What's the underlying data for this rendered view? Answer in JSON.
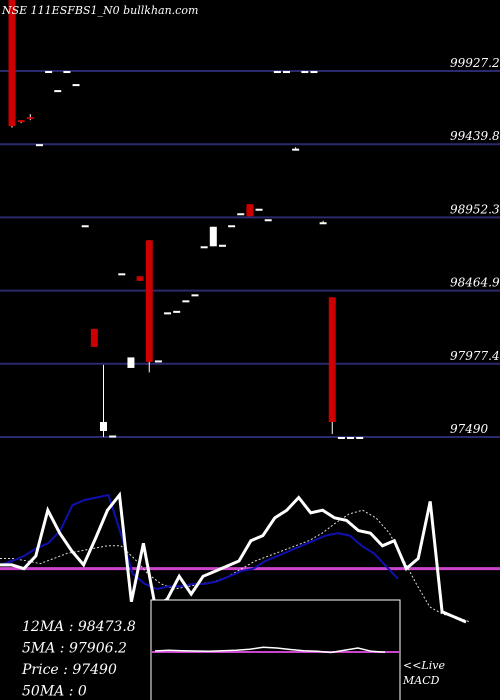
{
  "chart_data": {
    "type": "candlestick",
    "title": "NSE 111ESFBS1_N0  bullkhan.com",
    "price_ticks": [
      "99927.25",
      "99439.8",
      "98952.35",
      "98464.9",
      "97977.45",
      "97490"
    ],
    "price_values": [
      99927.25,
      99439.8,
      98952.35,
      98464.9,
      97977.45,
      97490
    ],
    "ylim": [
      97475,
      100600
    ],
    "grid": true,
    "colors": {
      "background": "#000000",
      "grid": "#2a2a6e",
      "down": "#cc0000",
      "up": "#ffffff",
      "ma_short": "#ffffff",
      "ma_long": "#1010b0",
      "signal": "#cc44cc",
      "macd_box": "#ffffff"
    },
    "candles": [
      {
        "i": 0,
        "o": 100600,
        "h": 100600,
        "l": 99550,
        "c": 99560
      },
      {
        "i": 1,
        "o": 99600,
        "h": 99600,
        "l": 99580,
        "c": 99590
      },
      {
        "i": 2,
        "o": 99620,
        "h": 99640,
        "l": 99600,
        "c": 99610
      },
      {
        "i": 3,
        "o": 99440,
        "h": 99440,
        "l": 99440,
        "c": 99440
      },
      {
        "i": 4,
        "o": 99927,
        "h": 99927,
        "l": 99927,
        "c": 99927
      },
      {
        "i": 5,
        "o": 99800,
        "h": 99800,
        "l": 99800,
        "c": 99800
      },
      {
        "i": 6,
        "o": 99927,
        "h": 99927,
        "l": 99927,
        "c": 99927
      },
      {
        "i": 7,
        "o": 99840,
        "h": 99840,
        "l": 99840,
        "c": 99840
      },
      {
        "i": 8,
        "o": 98900,
        "h": 98900,
        "l": 98900,
        "c": 98900
      },
      {
        "i": 9,
        "o": 98210,
        "h": 98210,
        "l": 98090,
        "c": 98090
      },
      {
        "i": 10,
        "o": 97530,
        "h": 97970,
        "l": 97490,
        "c": 97590
      },
      {
        "i": 11,
        "o": 97500,
        "h": 97500,
        "l": 97500,
        "c": 97500
      },
      {
        "i": 12,
        "o": 98580,
        "h": 98580,
        "l": 98580,
        "c": 98580
      },
      {
        "i": 13,
        "o": 97950,
        "h": 98020,
        "l": 97950,
        "c": 98020
      },
      {
        "i": 14,
        "o": 98560,
        "h": 98560,
        "l": 98530,
        "c": 98530
      },
      {
        "i": 15,
        "o": 98800,
        "h": 98800,
        "l": 97920,
        "c": 97990
      },
      {
        "i": 16,
        "o": 98000,
        "h": 98000,
        "l": 98000,
        "c": 98000
      },
      {
        "i": 17,
        "o": 98320,
        "h": 98320,
        "l": 98320,
        "c": 98320
      },
      {
        "i": 18,
        "o": 98330,
        "h": 98330,
        "l": 98330,
        "c": 98330
      },
      {
        "i": 19,
        "o": 98400,
        "h": 98400,
        "l": 98400,
        "c": 98400
      },
      {
        "i": 20,
        "o": 98440,
        "h": 98440,
        "l": 98440,
        "c": 98440
      },
      {
        "i": 21,
        "o": 98760,
        "h": 98760,
        "l": 98760,
        "c": 98760
      },
      {
        "i": 22,
        "o": 98760,
        "h": 98890,
        "l": 98760,
        "c": 98890
      },
      {
        "i": 23,
        "o": 98770,
        "h": 98770,
        "l": 98770,
        "c": 98770
      },
      {
        "i": 24,
        "o": 98900,
        "h": 98900,
        "l": 98900,
        "c": 98900
      },
      {
        "i": 25,
        "o": 98980,
        "h": 98980,
        "l": 98980,
        "c": 98980
      },
      {
        "i": 26,
        "o": 99040,
        "h": 99040,
        "l": 98960,
        "c": 98960
      },
      {
        "i": 27,
        "o": 99010,
        "h": 99010,
        "l": 99010,
        "c": 99010
      },
      {
        "i": 28,
        "o": 98940,
        "h": 98940,
        "l": 98940,
        "c": 98940
      },
      {
        "i": 29,
        "o": 99927,
        "h": 99927,
        "l": 99927,
        "c": 99927
      },
      {
        "i": 30,
        "o": 99927,
        "h": 99927,
        "l": 99927,
        "c": 99927
      },
      {
        "i": 31,
        "o": 99400,
        "h": 99420,
        "l": 99400,
        "c": 99410
      },
      {
        "i": 32,
        "o": 99927,
        "h": 99927,
        "l": 99927,
        "c": 99927
      },
      {
        "i": 33,
        "o": 99927,
        "h": 99927,
        "l": 99927,
        "c": 99927
      },
      {
        "i": 34,
        "o": 98910,
        "h": 98930,
        "l": 98910,
        "c": 98920
      },
      {
        "i": 35,
        "o": 98420,
        "h": 98420,
        "l": 97510,
        "c": 97590
      },
      {
        "i": 36,
        "o": 97490,
        "h": 97490,
        "l": 97490,
        "c": 97490
      },
      {
        "i": 37,
        "o": 97490,
        "h": 97490,
        "l": 97490,
        "c": 97490
      },
      {
        "i": 38,
        "o": 97490,
        "h": 97490,
        "l": 97490,
        "c": 97490
      }
    ],
    "ma_white": [
      0.55,
      0.55,
      0.58,
      0.48,
      0.12,
      0.3,
      0.44,
      0.55,
      0.34,
      0.12,
      0.0,
      0.84,
      0.38,
      0.88,
      0.82,
      0.64,
      0.78,
      0.64,
      0.6,
      0.56,
      0.52,
      0.36,
      0.32,
      0.18,
      0.12,
      0.02,
      0.14,
      0.12,
      0.18,
      0.2,
      0.28,
      0.3,
      0.4,
      0.36,
      0.58,
      0.5,
      0.05,
      0.92,
      0.96,
      1.0
    ],
    "ma_blue": [
      0.55,
      0.52,
      0.48,
      0.42,
      0.38,
      0.28,
      0.08,
      0.04,
      0.02,
      0.0,
      0.3,
      0.62,
      0.7,
      0.74,
      0.72,
      0.72,
      0.7,
      0.7,
      0.68,
      0.64,
      0.6,
      0.58,
      0.52,
      0.48,
      0.44,
      0.4,
      0.36,
      0.32,
      0.3,
      0.32,
      0.4,
      0.46,
      0.56,
      0.66
    ],
    "ma_dotted": [
      0.5,
      0.5,
      0.52,
      0.54,
      0.5,
      0.46,
      0.44,
      0.42,
      0.4,
      0.4,
      0.5,
      0.62,
      0.7,
      0.74,
      0.72,
      0.7,
      0.68,
      0.64,
      0.58,
      0.52,
      0.48,
      0.44,
      0.4,
      0.36,
      0.3,
      0.22,
      0.15,
      0.12,
      0.18,
      0.3,
      0.5,
      0.7,
      0.88,
      0.94,
      0.96,
      1.0
    ],
    "signal_level": 0.58,
    "macd_series": [
      0.2,
      0.25,
      0.22,
      0.2,
      0.18,
      0.22,
      0.25,
      0.32,
      0.45,
      0.4,
      0.3,
      0.22,
      0.18,
      0.1,
      0.25,
      0.4,
      0.18,
      0.12
    ],
    "stats": [
      {
        "label": "12MA",
        "value": "98473.8"
      },
      {
        "label": "5MA",
        "value": "97906.2"
      },
      {
        "label": "Price",
        "value": "97490"
      },
      {
        "label": "50MA",
        "value": "0"
      }
    ],
    "macd_label_line1": "<<Live",
    "macd_label_line2": "MACD"
  }
}
